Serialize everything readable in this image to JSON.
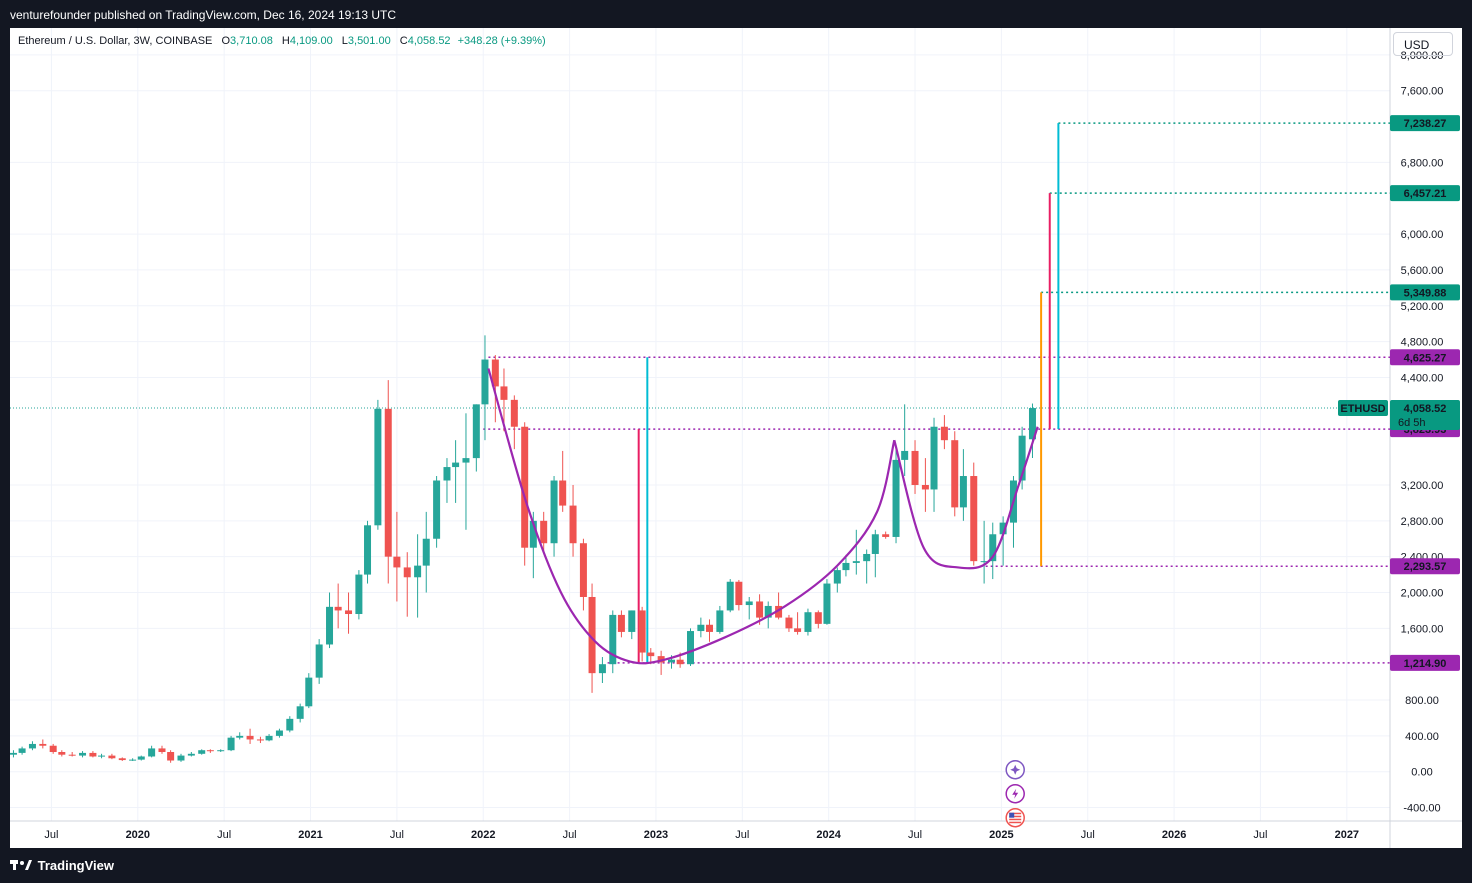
{
  "header": {
    "publisher": "venturefounder published on TradingView.com, Dec 16, 2024 19:13 UTC"
  },
  "legend": {
    "symbol": "Ethereum / U.S. Dollar, 3W, COINBASE",
    "o_label": "O",
    "o": "3,710.08",
    "h_label": "H",
    "h": "4,109.00",
    "l_label": "L",
    "l": "3,501.00",
    "c_label": "C",
    "c": "4,058.52",
    "change": "+348.28 (+9.39%)"
  },
  "currency": "USD",
  "footer": {
    "brand": "TradingView"
  },
  "colors": {
    "up": "#26a69a",
    "down": "#ef5350",
    "bg": "#ffffff",
    "purple": "#9c27b0",
    "teal": "#00bcd4",
    "crimson": "#e91e63",
    "orange": "#ff9800"
  },
  "icons": [
    "sparkle-icon",
    "lightning-icon",
    "us-flag-icon"
  ],
  "chart_data": {
    "type": "candlestick",
    "title": "Ethereum / U.S. Dollar, 3W, COINBASE",
    "symbol": "ETHUSD",
    "y_ticks": [
      8000,
      7600,
      6800,
      6000,
      5600,
      5200,
      4800,
      4400,
      3200,
      2800,
      2400,
      2000,
      1600,
      800,
      400,
      0,
      -400
    ],
    "ylim": [
      -550,
      8300
    ],
    "x_ticks": [
      {
        "label": "Jul",
        "date": 2019.5
      },
      {
        "label": "2020",
        "date": 2020.0
      },
      {
        "label": "Jul",
        "date": 2020.5
      },
      {
        "label": "2021",
        "date": 2021.0
      },
      {
        "label": "Jul",
        "date": 2021.5
      },
      {
        "label": "2022",
        "date": 2022.0
      },
      {
        "label": "Jul",
        "date": 2022.5
      },
      {
        "label": "2023",
        "date": 2023.0
      },
      {
        "label": "Jul",
        "date": 2023.5
      },
      {
        "label": "2024",
        "date": 2024.0
      },
      {
        "label": "Jul",
        "date": 2024.5
      },
      {
        "label": "2025",
        "date": 2025.0
      },
      {
        "label": "Jul",
        "date": 2025.5
      },
      {
        "label": "2026",
        "date": 2026.0
      },
      {
        "label": "Jul",
        "date": 2026.5
      },
      {
        "label": "2027",
        "date": 2027.0
      }
    ],
    "xlim": [
      2019.26,
      2027.25
    ],
    "candles": [
      {
        "t": 2019.28,
        "o": 190,
        "h": 240,
        "l": 160,
        "c": 210
      },
      {
        "t": 2019.33,
        "o": 210,
        "h": 280,
        "l": 190,
        "c": 260
      },
      {
        "t": 2019.39,
        "o": 260,
        "h": 340,
        "l": 240,
        "c": 310
      },
      {
        "t": 2019.45,
        "o": 310,
        "h": 360,
        "l": 260,
        "c": 290
      },
      {
        "t": 2019.51,
        "o": 290,
        "h": 310,
        "l": 200,
        "c": 220
      },
      {
        "t": 2019.56,
        "o": 220,
        "h": 240,
        "l": 170,
        "c": 190
      },
      {
        "t": 2019.62,
        "o": 190,
        "h": 220,
        "l": 170,
        "c": 180
      },
      {
        "t": 2019.68,
        "o": 180,
        "h": 230,
        "l": 160,
        "c": 210
      },
      {
        "t": 2019.74,
        "o": 210,
        "h": 230,
        "l": 160,
        "c": 170
      },
      {
        "t": 2019.79,
        "o": 170,
        "h": 200,
        "l": 150,
        "c": 180
      },
      {
        "t": 2019.85,
        "o": 180,
        "h": 200,
        "l": 140,
        "c": 150
      },
      {
        "t": 2019.91,
        "o": 150,
        "h": 160,
        "l": 120,
        "c": 130
      },
      {
        "t": 2019.97,
        "o": 130,
        "h": 150,
        "l": 120,
        "c": 135
      },
      {
        "t": 2020.02,
        "o": 135,
        "h": 180,
        "l": 125,
        "c": 170
      },
      {
        "t": 2020.08,
        "o": 170,
        "h": 290,
        "l": 160,
        "c": 260
      },
      {
        "t": 2020.14,
        "o": 260,
        "h": 290,
        "l": 200,
        "c": 220
      },
      {
        "t": 2020.19,
        "o": 220,
        "h": 240,
        "l": 100,
        "c": 125
      },
      {
        "t": 2020.25,
        "o": 125,
        "h": 200,
        "l": 110,
        "c": 180
      },
      {
        "t": 2020.31,
        "o": 180,
        "h": 220,
        "l": 170,
        "c": 200
      },
      {
        "t": 2020.37,
        "o": 200,
        "h": 250,
        "l": 190,
        "c": 240
      },
      {
        "t": 2020.42,
        "o": 240,
        "h": 250,
        "l": 210,
        "c": 230
      },
      {
        "t": 2020.48,
        "o": 230,
        "h": 250,
        "l": 220,
        "c": 240
      },
      {
        "t": 2020.54,
        "o": 240,
        "h": 400,
        "l": 230,
        "c": 380
      },
      {
        "t": 2020.59,
        "o": 380,
        "h": 440,
        "l": 360,
        "c": 400
      },
      {
        "t": 2020.65,
        "o": 400,
        "h": 480,
        "l": 310,
        "c": 360
      },
      {
        "t": 2020.71,
        "o": 360,
        "h": 390,
        "l": 320,
        "c": 350
      },
      {
        "t": 2020.76,
        "o": 350,
        "h": 420,
        "l": 340,
        "c": 400
      },
      {
        "t": 2020.82,
        "o": 400,
        "h": 480,
        "l": 380,
        "c": 460
      },
      {
        "t": 2020.88,
        "o": 460,
        "h": 620,
        "l": 440,
        "c": 590
      },
      {
        "t": 2020.94,
        "o": 590,
        "h": 760,
        "l": 550,
        "c": 730
      },
      {
        "t": 2020.99,
        "o": 730,
        "h": 1100,
        "l": 710,
        "c": 1050
      },
      {
        "t": 2021.05,
        "o": 1050,
        "h": 1480,
        "l": 980,
        "c": 1420
      },
      {
        "t": 2021.11,
        "o": 1420,
        "h": 2000,
        "l": 1380,
        "c": 1840
      },
      {
        "t": 2021.16,
        "o": 1840,
        "h": 2100,
        "l": 1600,
        "c": 1800
      },
      {
        "t": 2021.22,
        "o": 1800,
        "h": 2000,
        "l": 1540,
        "c": 1760
      },
      {
        "t": 2021.28,
        "o": 1760,
        "h": 2250,
        "l": 1700,
        "c": 2200
      },
      {
        "t": 2021.33,
        "o": 2200,
        "h": 2800,
        "l": 2100,
        "c": 2750
      },
      {
        "t": 2021.39,
        "o": 2750,
        "h": 4150,
        "l": 2700,
        "c": 4050
      },
      {
        "t": 2021.45,
        "o": 4050,
        "h": 4370,
        "l": 2100,
        "c": 2400
      },
      {
        "t": 2021.5,
        "o": 2400,
        "h": 2900,
        "l": 1900,
        "c": 2280
      },
      {
        "t": 2021.56,
        "o": 2280,
        "h": 2450,
        "l": 1730,
        "c": 2170
      },
      {
        "t": 2021.62,
        "o": 2170,
        "h": 2650,
        "l": 1720,
        "c": 2300
      },
      {
        "t": 2021.67,
        "o": 2300,
        "h": 2900,
        "l": 2000,
        "c": 2600
      },
      {
        "t": 2021.73,
        "o": 2600,
        "h": 3300,
        "l": 2500,
        "c": 3250
      },
      {
        "t": 2021.79,
        "o": 3250,
        "h": 3500,
        "l": 3000,
        "c": 3400
      },
      {
        "t": 2021.84,
        "o": 3400,
        "h": 3700,
        "l": 3000,
        "c": 3450
      },
      {
        "t": 2021.9,
        "o": 3450,
        "h": 4000,
        "l": 2700,
        "c": 3500
      },
      {
        "t": 2021.96,
        "o": 3500,
        "h": 4100,
        "l": 3350,
        "c": 4100
      },
      {
        "t": 2022.01,
        "o": 4100,
        "h": 4870,
        "l": 3700,
        "c": 4600
      },
      {
        "t": 2022.07,
        "o": 4600,
        "h": 4650,
        "l": 3900,
        "c": 4300
      },
      {
        "t": 2022.12,
        "o": 4300,
        "h": 4500,
        "l": 3800,
        "c": 4150
      },
      {
        "t": 2022.18,
        "o": 4150,
        "h": 4200,
        "l": 3600,
        "c": 3850
      },
      {
        "t": 2022.24,
        "o": 3850,
        "h": 3900,
        "l": 2300,
        "c": 2500
      },
      {
        "t": 2022.29,
        "o": 2500,
        "h": 2900,
        "l": 2160,
        "c": 2800
      },
      {
        "t": 2022.35,
        "o": 2800,
        "h": 2900,
        "l": 2450,
        "c": 2550
      },
      {
        "t": 2022.41,
        "o": 2550,
        "h": 3300,
        "l": 2400,
        "c": 3250
      },
      {
        "t": 2022.46,
        "o": 3250,
        "h": 3580,
        "l": 2900,
        "c": 2970
      },
      {
        "t": 2022.52,
        "o": 2970,
        "h": 3200,
        "l": 2400,
        "c": 2550
      },
      {
        "t": 2022.58,
        "o": 2550,
        "h": 2600,
        "l": 1800,
        "c": 1950
      },
      {
        "t": 2022.63,
        "o": 1950,
        "h": 2100,
        "l": 880,
        "c": 1100
      },
      {
        "t": 2022.69,
        "o": 1100,
        "h": 1280,
        "l": 990,
        "c": 1200
      },
      {
        "t": 2022.75,
        "o": 1200,
        "h": 1800,
        "l": 1100,
        "c": 1750
      },
      {
        "t": 2022.8,
        "o": 1750,
        "h": 1800,
        "l": 1500,
        "c": 1560
      },
      {
        "t": 2022.86,
        "o": 1560,
        "h": 1800,
        "l": 1480,
        "c": 1800
      },
      {
        "t": 2022.92,
        "o": 1800,
        "h": 1840,
        "l": 1230,
        "c": 1330
      },
      {
        "t": 2022.97,
        "o": 1330,
        "h": 1380,
        "l": 1200,
        "c": 1290
      },
      {
        "t": 2023.03,
        "o": 1290,
        "h": 1350,
        "l": 1080,
        "c": 1220
      },
      {
        "t": 2023.09,
        "o": 1220,
        "h": 1300,
        "l": 1150,
        "c": 1250
      },
      {
        "t": 2023.14,
        "o": 1250,
        "h": 1330,
        "l": 1160,
        "c": 1200
      },
      {
        "t": 2023.2,
        "o": 1200,
        "h": 1600,
        "l": 1180,
        "c": 1570
      },
      {
        "t": 2023.26,
        "o": 1570,
        "h": 1720,
        "l": 1500,
        "c": 1640
      },
      {
        "t": 2023.31,
        "o": 1640,
        "h": 1700,
        "l": 1450,
        "c": 1560
      },
      {
        "t": 2023.37,
        "o": 1560,
        "h": 1850,
        "l": 1540,
        "c": 1800
      },
      {
        "t": 2023.43,
        "o": 1800,
        "h": 2150,
        "l": 1780,
        "c": 2120
      },
      {
        "t": 2023.48,
        "o": 2120,
        "h": 2140,
        "l": 1800,
        "c": 1860
      },
      {
        "t": 2023.54,
        "o": 1860,
        "h": 1950,
        "l": 1700,
        "c": 1900
      },
      {
        "t": 2023.6,
        "o": 1900,
        "h": 1980,
        "l": 1640,
        "c": 1720
      },
      {
        "t": 2023.65,
        "o": 1720,
        "h": 1900,
        "l": 1600,
        "c": 1850
      },
      {
        "t": 2023.71,
        "o": 1850,
        "h": 2000,
        "l": 1700,
        "c": 1720
      },
      {
        "t": 2023.77,
        "o": 1720,
        "h": 1750,
        "l": 1560,
        "c": 1600
      },
      {
        "t": 2023.82,
        "o": 1600,
        "h": 1780,
        "l": 1530,
        "c": 1560
      },
      {
        "t": 2023.88,
        "o": 1560,
        "h": 1820,
        "l": 1520,
        "c": 1780
      },
      {
        "t": 2023.94,
        "o": 1780,
        "h": 1800,
        "l": 1600,
        "c": 1650
      },
      {
        "t": 2023.99,
        "o": 1650,
        "h": 2150,
        "l": 1640,
        "c": 2100
      },
      {
        "t": 2024.05,
        "o": 2100,
        "h": 2280,
        "l": 2000,
        "c": 2250
      },
      {
        "t": 2024.1,
        "o": 2250,
        "h": 2420,
        "l": 2180,
        "c": 2330
      },
      {
        "t": 2024.16,
        "o": 2330,
        "h": 2700,
        "l": 2200,
        "c": 2350
      },
      {
        "t": 2024.22,
        "o": 2350,
        "h": 2480,
        "l": 2100,
        "c": 2430
      },
      {
        "t": 2024.27,
        "o": 2430,
        "h": 2700,
        "l": 2170,
        "c": 2650
      },
      {
        "t": 2024.33,
        "o": 2650,
        "h": 2680,
        "l": 2600,
        "c": 2620
      },
      {
        "t": 2024.39,
        "o": 2620,
        "h": 3600,
        "l": 2550,
        "c": 3480
      },
      {
        "t": 2024.44,
        "o": 3480,
        "h": 4100,
        "l": 3300,
        "c": 3580
      },
      {
        "t": 2024.5,
        "o": 3580,
        "h": 3700,
        "l": 3100,
        "c": 3200
      },
      {
        "t": 2024.56,
        "o": 3200,
        "h": 3500,
        "l": 2900,
        "c": 3150
      },
      {
        "t": 2024.61,
        "o": 3150,
        "h": 3950,
        "l": 2900,
        "c": 3850
      },
      {
        "t": 2024.67,
        "o": 3850,
        "h": 3980,
        "l": 3600,
        "c": 3700
      },
      {
        "t": 2024.73,
        "o": 3700,
        "h": 3800,
        "l": 2850,
        "c": 2950
      },
      {
        "t": 2024.78,
        "o": 2950,
        "h": 3600,
        "l": 2800,
        "c": 3300
      },
      {
        "t": 2024.84,
        "o": 3300,
        "h": 3450,
        "l": 2300,
        "c": 2350
      },
      {
        "t": 2024.9,
        "o": 2350,
        "h": 2800,
        "l": 2100,
        "c": 2350
      },
      {
        "t": 2024.95,
        "o": 2350,
        "h": 2780,
        "l": 2150,
        "c": 2650
      },
      {
        "t": 2025.01,
        "o": 2650,
        "h": 2850,
        "l": 2300,
        "c": 2780
      },
      {
        "t": 2025.07,
        "o": 2780,
        "h": 3300,
        "l": 2500,
        "c": 3250
      },
      {
        "t": 2025.12,
        "o": 3250,
        "h": 3850,
        "l": 3150,
        "c": 3750
      },
      {
        "t": 2025.18,
        "o": 3710,
        "h": 4109,
        "l": 3501,
        "c": 4058.52
      }
    ],
    "levels": [
      {
        "label": "7,238.27",
        "value": 7238.27,
        "color": "#089981"
      },
      {
        "label": "6,457.21",
        "value": 6457.21,
        "color": "#089981"
      },
      {
        "label": "5,349.88",
        "value": 5349.88,
        "color": "#089981"
      },
      {
        "label": "4,625.27",
        "value": 4625.27,
        "color": "#9c27b0"
      },
      {
        "label": "3,823.93",
        "value": 3823.93,
        "color": "#9c27b0"
      },
      {
        "label": "2,293.57",
        "value": 2293.57,
        "color": "#9c27b0"
      },
      {
        "label": "1,214.90",
        "value": 1214.9,
        "color": "#9c27b0"
      }
    ],
    "last_price": {
      "symbol": "ETHUSD",
      "value": 4058.52,
      "label": "4,058.52",
      "countdown": "6d 5h"
    },
    "measures": [
      {
        "t": 2022.9,
        "from": 3823.93,
        "to": 1214.9,
        "color": "#e91e63"
      },
      {
        "t": 2022.95,
        "from": 1214.9,
        "to": 4625.27,
        "color": "#00bcd4"
      },
      {
        "t": 2025.23,
        "from": 2293.57,
        "to": 5349.88,
        "color": "#ff9800"
      },
      {
        "t": 2025.28,
        "from": 3823.93,
        "to": 6457.21,
        "color": "#e91e63"
      },
      {
        "t": 2025.33,
        "from": 3823.93,
        "to": 7238.27,
        "color": "#00bcd4"
      }
    ],
    "curves": [
      {
        "points": [
          [
            2022.03,
            4500
          ],
          [
            2022.25,
            3000
          ],
          [
            2022.45,
            2000
          ],
          [
            2022.65,
            1450
          ],
          [
            2022.85,
            1230
          ],
          [
            2023.05,
            1250
          ],
          [
            2023.4,
            1500
          ],
          [
            2023.75,
            1850
          ],
          [
            2024.05,
            2300
          ],
          [
            2024.28,
            2900
          ],
          [
            2024.38,
            3700
          ]
        ]
      },
      {
        "points": [
          [
            2024.38,
            3700
          ],
          [
            2024.55,
            2500
          ],
          [
            2024.75,
            2280
          ],
          [
            2024.95,
            2400
          ],
          [
            2025.1,
            3200
          ],
          [
            2025.21,
            3850
          ]
        ]
      }
    ]
  }
}
